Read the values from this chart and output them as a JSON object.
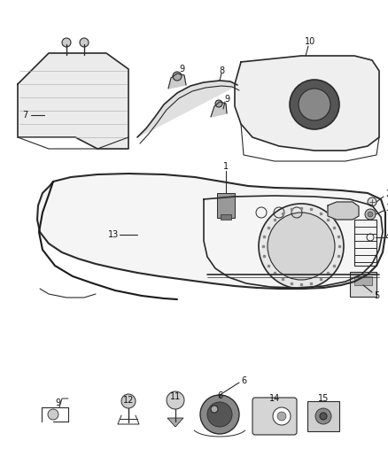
{
  "background_color": "#ffffff",
  "line_color": "#2a2a2a",
  "fig_width": 4.38,
  "fig_height": 5.33,
  "dpi": 100
}
